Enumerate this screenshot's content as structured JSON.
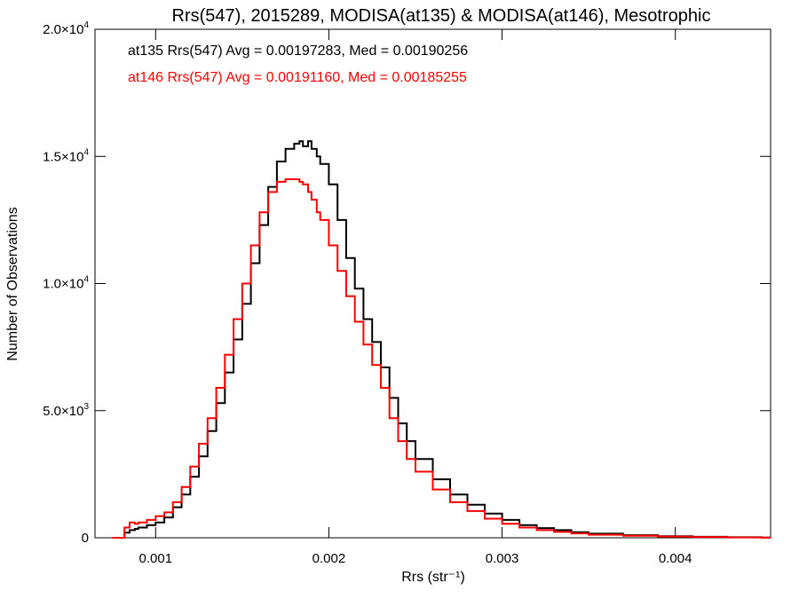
{
  "chart_data": {
    "type": "line",
    "title": "Rrs(547), 2015289, MODISA(at135) & MODISA(at146), Mesotrophic",
    "xlabel": "Rrs (str⁻¹)",
    "ylabel": "Number of Observations",
    "xlim": [
      0.00065,
      0.00455
    ],
    "ylim": [
      0,
      20000
    ],
    "x_ticks": [
      0.001,
      0.002,
      0.003,
      0.004
    ],
    "x_tick_labels": [
      "0.001",
      "0.002",
      "0.003",
      "0.004"
    ],
    "y_ticks": [
      0,
      5000,
      10000,
      15000,
      20000
    ],
    "y_tick_labels": [
      {
        "mantissa": "0",
        "exponent": ""
      },
      {
        "mantissa": "5.0×10",
        "exponent": "3"
      },
      {
        "mantissa": "1.0×10",
        "exponent": "4"
      },
      {
        "mantissa": "1.5×10",
        "exponent": "4"
      },
      {
        "mantissa": "2.0×10",
        "exponent": "4"
      }
    ],
    "grid": false,
    "legend_position": "top-left",
    "series": [
      {
        "name": "at135",
        "legend_text": "at135 Rrs(547) Avg = 0.00197283, Med = 0.00190256",
        "color": "#000000",
        "x": [
          0.0008,
          0.00082,
          0.00085,
          0.00088,
          0.0009,
          0.00095,
          0.001,
          0.00105,
          0.0011,
          0.00115,
          0.0012,
          0.00125,
          0.0013,
          0.00135,
          0.0014,
          0.00145,
          0.0015,
          0.00155,
          0.0016,
          0.00165,
          0.0017,
          0.00175,
          0.0018,
          0.00183,
          0.00185,
          0.00188,
          0.0019,
          0.00193,
          0.00195,
          0.002,
          0.00205,
          0.0021,
          0.00215,
          0.0022,
          0.00225,
          0.0023,
          0.00235,
          0.0024,
          0.00245,
          0.0025,
          0.0026,
          0.0027,
          0.0028,
          0.0029,
          0.003,
          0.0031,
          0.0032,
          0.0033,
          0.0034,
          0.0035,
          0.0037,
          0.0039,
          0.0041,
          0.0043,
          0.0045
        ],
        "y": [
          0,
          200,
          300,
          350,
          400,
          500,
          600,
          800,
          1200,
          1700,
          2400,
          3200,
          4200,
          5300,
          6500,
          7800,
          9200,
          10800,
          12300,
          13800,
          14800,
          15300,
          15500,
          15600,
          15400,
          15600,
          15300,
          15000,
          14700,
          13900,
          12500,
          11000,
          9800,
          8600,
          7700,
          6700,
          5500,
          4500,
          3800,
          3100,
          2300,
          1700,
          1300,
          950,
          700,
          500,
          380,
          300,
          220,
          160,
          100,
          60,
          40,
          20,
          10
        ]
      },
      {
        "name": "at146",
        "legend_text": "at146 Rrs(547) Avg = 0.00191160, Med = 0.00185255",
        "color": "#ff0000",
        "x": [
          0.0008,
          0.00082,
          0.00085,
          0.00088,
          0.0009,
          0.00095,
          0.001,
          0.00105,
          0.0011,
          0.00115,
          0.0012,
          0.00125,
          0.0013,
          0.00135,
          0.0014,
          0.00145,
          0.0015,
          0.00155,
          0.0016,
          0.00165,
          0.0017,
          0.00175,
          0.0018,
          0.00183,
          0.00185,
          0.00188,
          0.0019,
          0.00193,
          0.00195,
          0.002,
          0.00205,
          0.0021,
          0.00215,
          0.0022,
          0.00225,
          0.0023,
          0.00235,
          0.0024,
          0.00245,
          0.0025,
          0.0026,
          0.0027,
          0.0028,
          0.0029,
          0.003,
          0.0031,
          0.0032,
          0.0033,
          0.0034,
          0.0035,
          0.0037,
          0.0039,
          0.0041,
          0.0043,
          0.0045
        ],
        "y": [
          0,
          400,
          600,
          550,
          600,
          700,
          850,
          1000,
          1400,
          2000,
          2800,
          3700,
          4700,
          5900,
          7200,
          8600,
          10000,
          11500,
          12800,
          13600,
          14000,
          14100,
          14100,
          14000,
          13900,
          13600,
          13300,
          12800,
          12500,
          11500,
          10500,
          9500,
          8500,
          7600,
          6800,
          5900,
          4700,
          3800,
          3100,
          2600,
          1900,
          1400,
          1050,
          750,
          550,
          400,
          300,
          230,
          170,
          120,
          80,
          50,
          30,
          15,
          5
        ]
      }
    ]
  }
}
